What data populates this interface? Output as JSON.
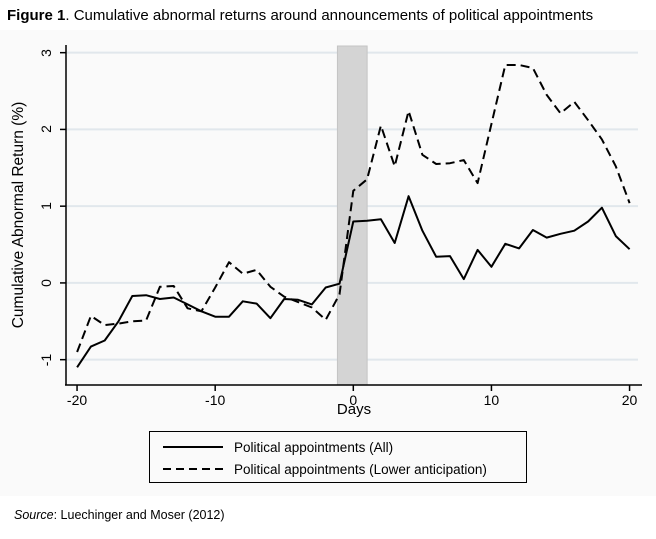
{
  "figure": {
    "title_prefix": "Figure 1",
    "title_rest": ". Cumulative abnormal returns around announcements of political appointments",
    "source_prefix": "Source",
    "source_rest": ": Luechinger and Moser (2012)"
  },
  "colors": {
    "page_background": "#ffffff",
    "graph_background": "#fafafa",
    "gridline": "#e1e7ec",
    "band_fill": "#d4d4d4",
    "band_edge": "#c4c4c4",
    "axis": "#000000",
    "line": "#000000"
  },
  "chart_data": {
    "type": "line",
    "title": "",
    "xlabel": "Days",
    "ylabel": "Cumulative Abnormal Return (%)",
    "xlim": [
      -20.8,
      20.9
    ],
    "ylim": [
      -1.33,
      3.1
    ],
    "xticks": [
      -20,
      -10,
      0,
      10,
      20
    ],
    "yticks": [
      -1,
      0,
      1,
      2,
      3
    ],
    "grid": true,
    "legend_position": "bottom-box",
    "event_band": {
      "x0": -1.15,
      "x1": 1.0
    },
    "x": [
      -20,
      -19,
      -18,
      -17,
      -16,
      -15,
      -14,
      -13,
      -12,
      -11,
      -10,
      -9,
      -8,
      -7,
      -6,
      -5,
      -4,
      -3,
      -2,
      -1,
      0,
      1,
      2,
      3,
      4,
      5,
      6,
      7,
      8,
      9,
      10,
      11,
      12,
      13,
      14,
      15,
      16,
      17,
      18,
      19,
      20
    ],
    "series": [
      {
        "name": "Political appointments (All)",
        "style": "solid",
        "values": [
          -1.1,
          -0.83,
          -0.75,
          -0.5,
          -0.17,
          -0.16,
          -0.21,
          -0.19,
          -0.28,
          -0.37,
          -0.44,
          -0.44,
          -0.24,
          -0.27,
          -0.46,
          -0.21,
          -0.22,
          -0.28,
          -0.06,
          -0.01,
          0.8,
          0.81,
          0.83,
          0.52,
          1.13,
          0.68,
          0.34,
          0.35,
          0.05,
          0.43,
          0.21,
          0.51,
          0.45,
          0.69,
          0.59,
          0.64,
          0.68,
          0.8,
          0.98,
          0.61,
          0.44
        ]
      },
      {
        "name": "Political appointments (Lower anticipation)",
        "style": "dashed",
        "values": [
          -0.9,
          -0.43,
          -0.55,
          -0.53,
          -0.5,
          -0.49,
          -0.05,
          -0.04,
          -0.33,
          -0.37,
          -0.06,
          0.27,
          0.12,
          0.17,
          -0.05,
          -0.18,
          -0.25,
          -0.32,
          -0.48,
          -0.15,
          1.2,
          1.35,
          2.05,
          1.52,
          2.24,
          1.67,
          1.55,
          1.56,
          1.6,
          1.3,
          2.07,
          2.84,
          2.84,
          2.8,
          2.45,
          2.21,
          2.36,
          2.12,
          1.87,
          1.52,
          1.04
        ]
      }
    ]
  }
}
